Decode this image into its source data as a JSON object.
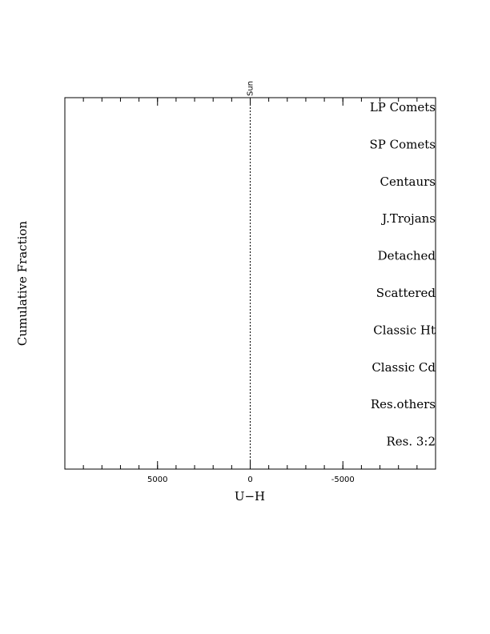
{
  "chart_data": {
    "type": "line",
    "xlabel": "U−H",
    "ylabel": "Cumulative Fraction",
    "xlim": [
      10000,
      -10000
    ],
    "xticks": [
      5000,
      0,
      -5000
    ],
    "x_minor_step": 1000,
    "panel_labels": [
      "LP Comets",
      "SP Comets",
      "Centaurs",
      "J.Trojans",
      "Detached",
      "Scattered",
      "Classic Ht",
      "Classic Cd",
      "Res.others",
      "Res. 3:2"
    ],
    "vline": {
      "x": 0,
      "label": "Sun"
    },
    "series": []
  }
}
